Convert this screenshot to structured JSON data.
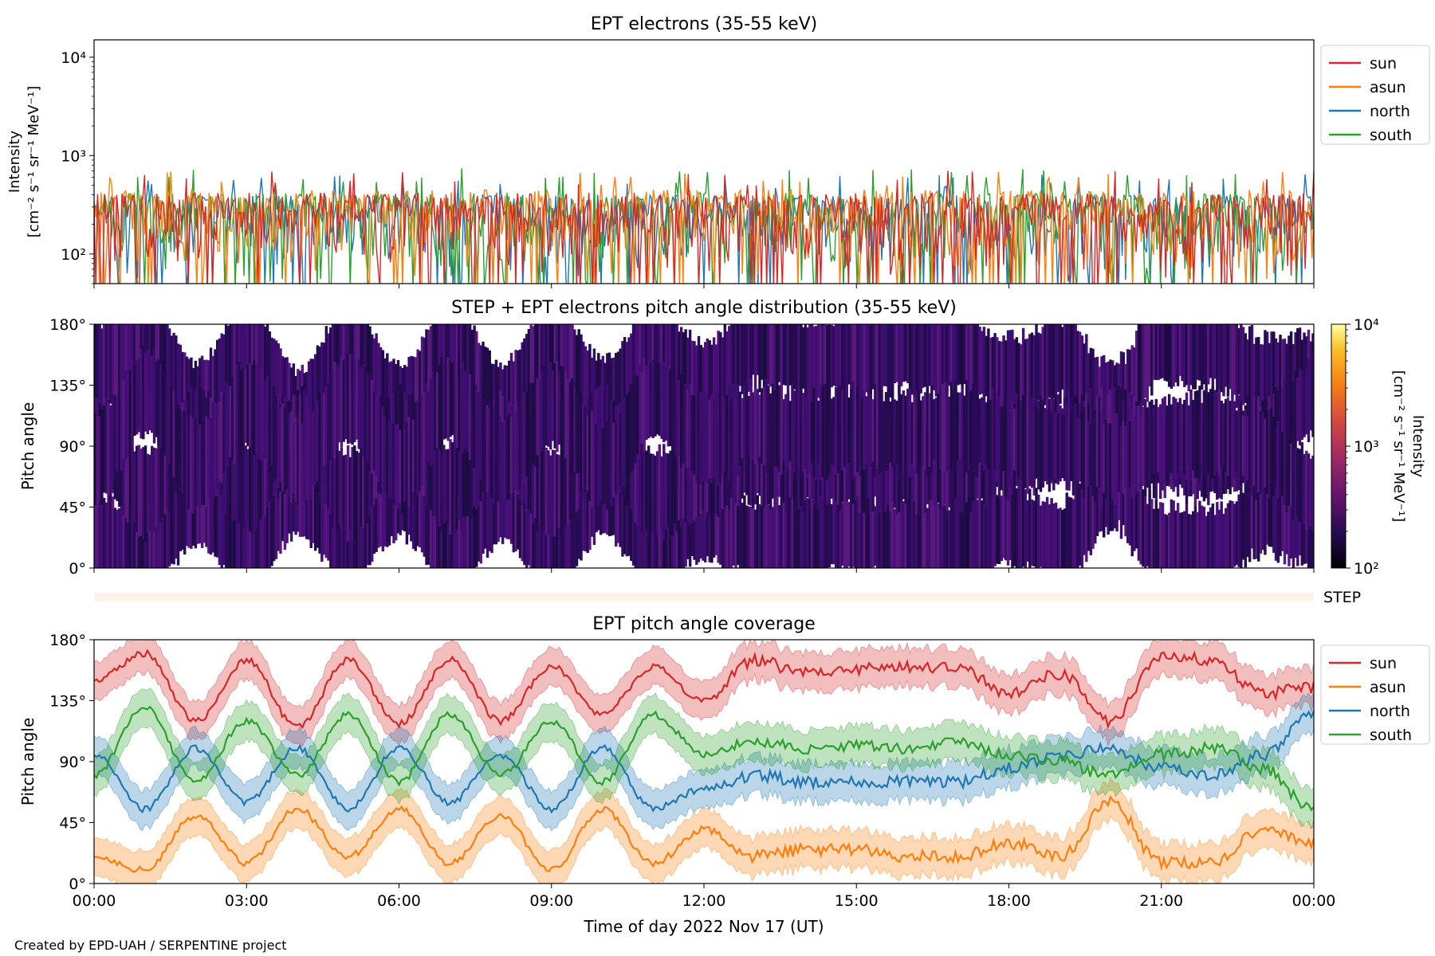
{
  "figure": {
    "footer": "Created by EPD-UAH / SERPENTINE project",
    "x_axis_label": "Time of day 2022 Nov 17 (UT)",
    "x_tick_labels": [
      "00:00",
      "03:00",
      "06:00",
      "09:00",
      "12:00",
      "15:00",
      "18:00",
      "21:00",
      "00:00"
    ]
  },
  "colors": {
    "sun": "#d62728",
    "asun": "#ff7f0e",
    "north": "#1f77b4",
    "south": "#2ca02c"
  },
  "chart_data": [
    {
      "type": "line",
      "title": "EPT electrons (35-55 keV)",
      "ylabel_line1": "Intensity",
      "ylabel_line2": "[cm⁻² s⁻¹ sr⁻¹ MeV⁻¹]",
      "yscale": "log",
      "ylim": [
        50,
        15000
      ],
      "y_tick_values": [
        100,
        1000,
        10000
      ],
      "y_tick_labels": [
        "10²",
        "10³",
        "10⁴"
      ],
      "xlim_hours": [
        0,
        24
      ],
      "legend_placement": "outside-top-right",
      "series": [
        {
          "name": "sun",
          "typical_range": [
            50,
            420
          ],
          "peak": 700
        },
        {
          "name": "asun",
          "typical_range": [
            50,
            450
          ],
          "peak": 700
        },
        {
          "name": "north",
          "typical_range": [
            50,
            400
          ],
          "peak": 650
        },
        {
          "name": "south",
          "typical_range": [
            50,
            420
          ],
          "peak": 750
        }
      ]
    },
    {
      "type": "heatmap",
      "title": "STEP + EPT electrons pitch angle distribution (35-55 keV)",
      "ylabel": "Pitch angle",
      "ylim": [
        0,
        180
      ],
      "y_tick_labels": [
        "0°",
        "45°",
        "90°",
        "135°",
        "180°"
      ],
      "xlim_hours": [
        0,
        24
      ],
      "colorbar": {
        "label_line1": "Intensity",
        "label_line2": "[cm⁻² s⁻¹ sr⁻¹ MeV⁻¹]",
        "scale": "log",
        "range": [
          100,
          10000
        ],
        "tick_labels": [
          "10²",
          "10³",
          "10⁴"
        ],
        "colormap": "inferno"
      },
      "step_strip_label": "STEP"
    },
    {
      "type": "line",
      "title": "EPT pitch angle coverage",
      "ylabel": "Pitch angle",
      "ylim": [
        0,
        180
      ],
      "y_tick_labels": [
        "0°",
        "45°",
        "90°",
        "135°",
        "180°"
      ],
      "xlim_hours": [
        0,
        24
      ],
      "legend_placement": "outside-top-right",
      "series": [
        {
          "name": "sun",
          "x": [
            0,
            1,
            2,
            3,
            4,
            5,
            6,
            7,
            8,
            9,
            10,
            11,
            12,
            13,
            14,
            15,
            16,
            17,
            18,
            19,
            20,
            21,
            22,
            23,
            24
          ],
          "y": [
            150,
            170,
            120,
            165,
            115,
            165,
            118,
            165,
            120,
            160,
            125,
            160,
            135,
            165,
            155,
            158,
            160,
            160,
            140,
            155,
            120,
            168,
            165,
            140,
            145
          ]
        },
        {
          "name": "asun",
          "x": [
            0,
            1,
            2,
            3,
            4,
            5,
            6,
            7,
            8,
            9,
            10,
            11,
            12,
            13,
            14,
            15,
            16,
            17,
            18,
            19,
            20,
            21,
            22,
            23,
            24
          ],
          "y": [
            20,
            10,
            50,
            15,
            55,
            20,
            55,
            15,
            50,
            10,
            55,
            15,
            40,
            20,
            25,
            25,
            20,
            20,
            30,
            20,
            60,
            15,
            15,
            40,
            30
          ]
        },
        {
          "name": "north",
          "x": [
            0,
            1,
            2,
            3,
            4,
            5,
            6,
            7,
            8,
            9,
            10,
            11,
            12,
            13,
            14,
            15,
            16,
            17,
            18,
            19,
            20,
            21,
            22,
            23,
            24
          ],
          "y": [
            95,
            55,
            100,
            60,
            100,
            55,
            100,
            60,
            95,
            55,
            100,
            55,
            70,
            80,
            75,
            75,
            75,
            75,
            85,
            95,
            100,
            85,
            80,
            95,
            125
          ]
        },
        {
          "name": "south",
          "x": [
            0,
            1,
            2,
            3,
            4,
            5,
            6,
            7,
            8,
            9,
            10,
            11,
            12,
            13,
            14,
            15,
            16,
            17,
            18,
            19,
            20,
            21,
            22,
            23,
            24
          ],
          "y": [
            80,
            130,
            75,
            120,
            80,
            125,
            75,
            125,
            80,
            120,
            75,
            125,
            95,
            105,
            100,
            102,
            100,
            105,
            95,
            90,
            80,
            95,
            100,
            85,
            55
          ]
        }
      ]
    }
  ]
}
